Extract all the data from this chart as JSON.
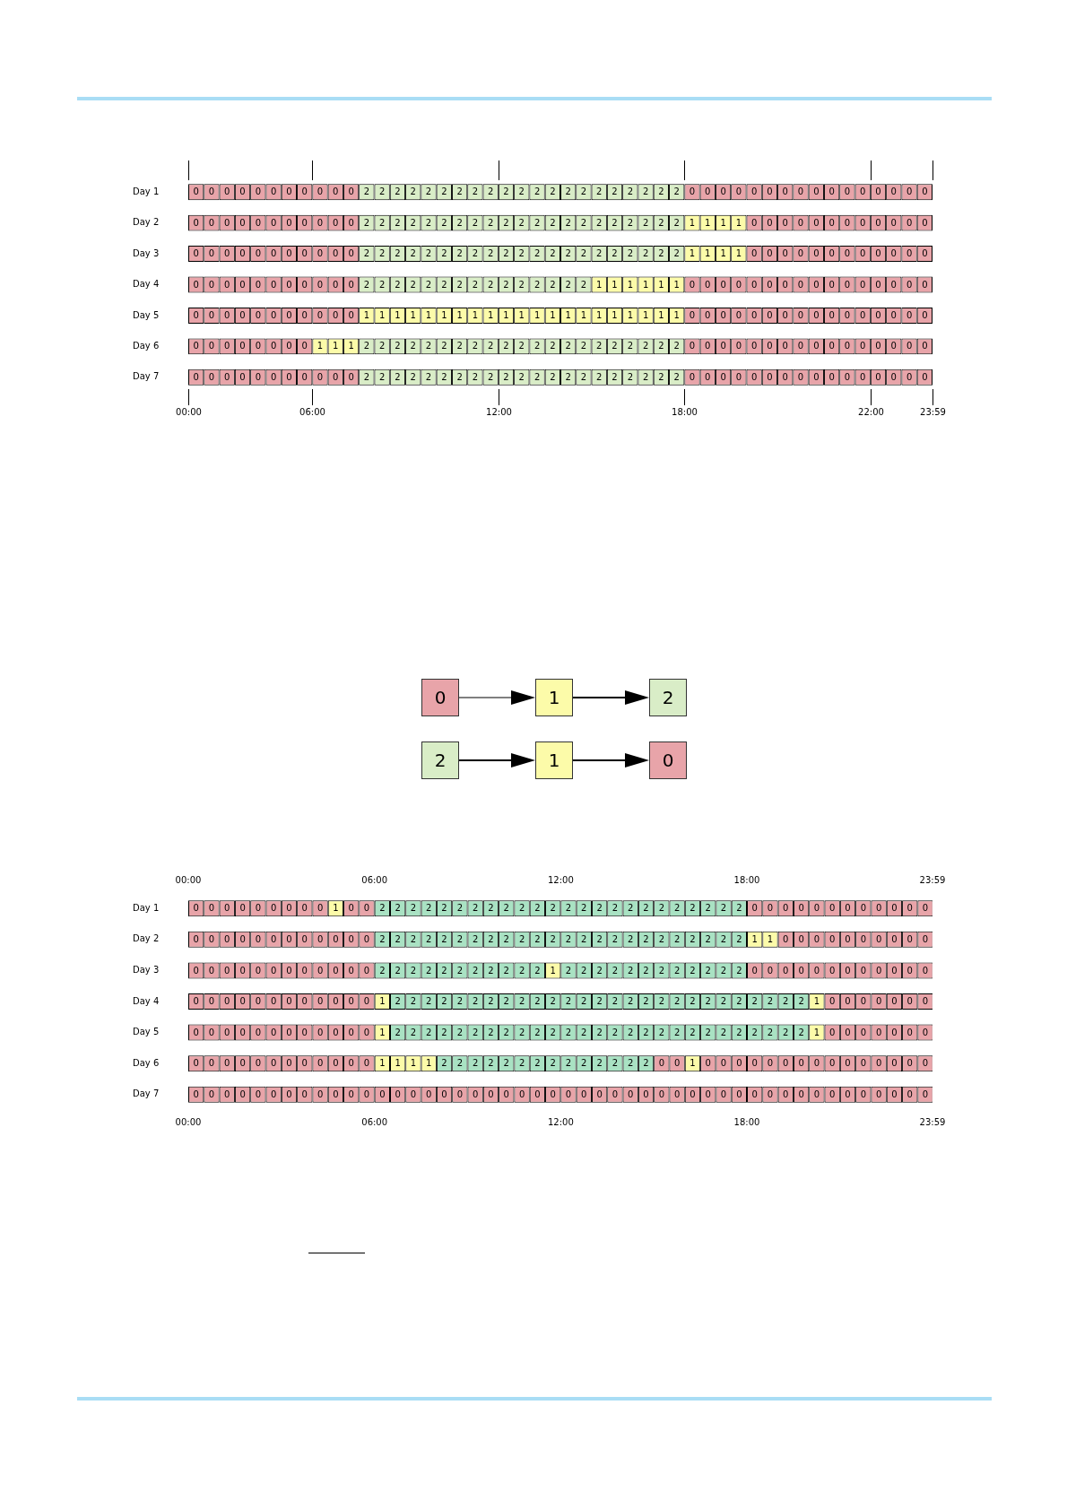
{
  "chart_data": [
    {
      "type": "heatmap",
      "y_categories": [
        "Day 1",
        "Day 2",
        "Day 3",
        "Day 4",
        "Day 5",
        "Day 6",
        "Day 7"
      ],
      "categories": [
        null,
        null,
        null,
        null,
        null,
        null,
        null,
        null,
        null,
        null,
        null,
        null,
        null,
        null,
        null,
        null,
        null,
        null,
        null,
        null,
        null,
        null,
        null,
        null,
        null,
        null,
        null,
        null,
        null,
        null,
        null,
        null,
        null,
        null,
        null,
        null,
        null,
        null,
        null,
        null,
        null,
        null,
        null,
        null,
        null,
        null,
        null,
        null
      ],
      "annotations": [
        "00:00",
        "06:00",
        "12:00",
        "18:00",
        "22:00",
        "23:59"
      ],
      "colors": [
        "#e8a4a9",
        "#fcfba9",
        "#d9edc7"
      ],
      "data_labels": true,
      "cells": [
        [
          0,
          0,
          0,
          0,
          0,
          0,
          0,
          0,
          0,
          0,
          0,
          2,
          2,
          2,
          2,
          2,
          2,
          2,
          2,
          2,
          2,
          2,
          2,
          2,
          2,
          2,
          2,
          2,
          2,
          2,
          2,
          2,
          0,
          0,
          0,
          0,
          0,
          0,
          0,
          0,
          0,
          0,
          0,
          0,
          0,
          0,
          0,
          0
        ],
        [
          0,
          0,
          0,
          0,
          0,
          0,
          0,
          0,
          0,
          0,
          0,
          2,
          2,
          2,
          2,
          2,
          2,
          2,
          2,
          2,
          2,
          2,
          2,
          2,
          2,
          2,
          2,
          2,
          2,
          2,
          2,
          2,
          1,
          1,
          1,
          1,
          0,
          0,
          0,
          0,
          0,
          0,
          0,
          0,
          0,
          0,
          0,
          0
        ],
        [
          0,
          0,
          0,
          0,
          0,
          0,
          0,
          0,
          0,
          0,
          0,
          2,
          2,
          2,
          2,
          2,
          2,
          2,
          2,
          2,
          2,
          2,
          2,
          2,
          2,
          2,
          2,
          2,
          2,
          2,
          2,
          2,
          1,
          1,
          1,
          1,
          0,
          0,
          0,
          0,
          0,
          0,
          0,
          0,
          0,
          0,
          0,
          0
        ],
        [
          0,
          0,
          0,
          0,
          0,
          0,
          0,
          0,
          0,
          0,
          0,
          2,
          2,
          2,
          2,
          2,
          2,
          2,
          2,
          2,
          2,
          2,
          2,
          2,
          2,
          2,
          1,
          1,
          1,
          1,
          1,
          1,
          0,
          0,
          0,
          0,
          0,
          0,
          0,
          0,
          0,
          0,
          0,
          0,
          0,
          0,
          0,
          0
        ],
        [
          0,
          0,
          0,
          0,
          0,
          0,
          0,
          0,
          0,
          0,
          0,
          1,
          1,
          1,
          1,
          1,
          1,
          1,
          1,
          1,
          1,
          1,
          1,
          1,
          1,
          1,
          1,
          1,
          1,
          1,
          1,
          1,
          0,
          0,
          0,
          0,
          0,
          0,
          0,
          0,
          0,
          0,
          0,
          0,
          0,
          0,
          0,
          0
        ],
        [
          0,
          0,
          0,
          0,
          0,
          0,
          0,
          0,
          1,
          1,
          1,
          2,
          2,
          2,
          2,
          2,
          2,
          2,
          2,
          2,
          2,
          2,
          2,
          2,
          2,
          2,
          2,
          2,
          2,
          2,
          2,
          2,
          0,
          0,
          0,
          0,
          0,
          0,
          0,
          0,
          0,
          0,
          0,
          0,
          0,
          0,
          0,
          0
        ],
        [
          0,
          0,
          0,
          0,
          0,
          0,
          0,
          0,
          0,
          0,
          0,
          2,
          2,
          2,
          2,
          2,
          2,
          2,
          2,
          2,
          2,
          2,
          2,
          2,
          2,
          2,
          2,
          2,
          2,
          2,
          2,
          2,
          0,
          0,
          0,
          0,
          0,
          0,
          0,
          0,
          0,
          0,
          0,
          0,
          0,
          0,
          0,
          0
        ]
      ]
    },
    {
      "type": "other",
      "annotations": [
        "0",
        "1",
        "2",
        "2",
        "1",
        "0"
      ],
      "colors": [
        "#e8a4a9",
        "#fcfba9",
        "#d9edc7",
        "#d9edc7",
        "#fcfba9",
        "#e8a4a9"
      ]
    },
    {
      "type": "heatmap",
      "y_categories": [
        "Day 1",
        "Day 2",
        "Day 3",
        "Day 4",
        "Day 5",
        "Day 6",
        "Day 7"
      ],
      "x": [
        0.25,
        0.75,
        1.25,
        1.75,
        2.25,
        2.75,
        3.25,
        3.75,
        4.25,
        4.75,
        5.25,
        5.75,
        6.25,
        6.75,
        7.25,
        7.75,
        8.25,
        8.75,
        9.25,
        9.75,
        10.25,
        10.75,
        11.25,
        11.75,
        12.25,
        12.75,
        13.25,
        13.75,
        14.25,
        14.75,
        15.25,
        15.75,
        16.25,
        16.75,
        17.25,
        17.75,
        18.25,
        18.75,
        19.25,
        19.75,
        20.25,
        20.75,
        21.25,
        21.75,
        22.25,
        22.75,
        23.25,
        23.75
      ],
      "xlim": [
        0,
        23.98
      ],
      "xticks": [
        {
          "value": 0,
          "label": "00:00"
        },
        {
          "value": 6,
          "label": "06:00"
        },
        {
          "value": 12,
          "label": "12:00"
        },
        {
          "value": 18,
          "label": "18:00"
        },
        {
          "value": 23.98,
          "label": "23:59"
        }
      ],
      "x2lim": [
        0,
        23.98
      ],
      "x2ticks": [
        {
          "value": 0,
          "label": "00:00"
        },
        {
          "value": 6,
          "label": "06:00"
        },
        {
          "value": 12,
          "label": "12:00"
        },
        {
          "value": 18,
          "label": "18:00"
        },
        {
          "value": 23.98,
          "label": "23:59"
        }
      ],
      "colors": [
        "#e8a4a9",
        "#fcfba9",
        "#a9e2c3"
      ],
      "data_labels": true,
      "cells": [
        [
          0,
          0,
          0,
          0,
          0,
          0,
          0,
          0,
          0,
          1,
          0,
          0,
          2,
          2,
          2,
          2,
          2,
          2,
          2,
          2,
          2,
          2,
          2,
          2,
          2,
          2,
          2,
          2,
          2,
          2,
          2,
          2,
          2,
          2,
          2,
          2,
          0,
          0,
          0,
          0,
          0,
          0,
          0,
          0,
          0,
          0,
          0,
          0
        ],
        [
          0,
          0,
          0,
          0,
          0,
          0,
          0,
          0,
          0,
          0,
          0,
          0,
          2,
          2,
          2,
          2,
          2,
          2,
          2,
          2,
          2,
          2,
          2,
          2,
          2,
          2,
          2,
          2,
          2,
          2,
          2,
          2,
          2,
          2,
          2,
          2,
          1,
          1,
          0,
          0,
          0,
          0,
          0,
          0,
          0,
          0,
          0,
          0
        ],
        [
          0,
          0,
          0,
          0,
          0,
          0,
          0,
          0,
          0,
          0,
          0,
          0,
          2,
          2,
          2,
          2,
          2,
          2,
          2,
          2,
          2,
          2,
          2,
          1,
          2,
          2,
          2,
          2,
          2,
          2,
          2,
          2,
          2,
          2,
          2,
          2,
          0,
          0,
          0,
          0,
          0,
          0,
          0,
          0,
          0,
          0,
          0,
          0
        ],
        [
          0,
          0,
          0,
          0,
          0,
          0,
          0,
          0,
          0,
          0,
          0,
          0,
          1,
          2,
          2,
          2,
          2,
          2,
          2,
          2,
          2,
          2,
          2,
          2,
          2,
          2,
          2,
          2,
          2,
          2,
          2,
          2,
          2,
          2,
          2,
          2,
          2,
          2,
          2,
          2,
          1,
          0,
          0,
          0,
          0,
          0,
          0,
          0
        ],
        [
          0,
          0,
          0,
          0,
          0,
          0,
          0,
          0,
          0,
          0,
          0,
          0,
          1,
          2,
          2,
          2,
          2,
          2,
          2,
          2,
          2,
          2,
          2,
          2,
          2,
          2,
          2,
          2,
          2,
          2,
          2,
          2,
          2,
          2,
          2,
          2,
          2,
          2,
          2,
          2,
          1,
          0,
          0,
          0,
          0,
          0,
          0,
          0
        ],
        [
          0,
          0,
          0,
          0,
          0,
          0,
          0,
          0,
          0,
          0,
          0,
          0,
          1,
          1,
          1,
          1,
          2,
          2,
          2,
          2,
          2,
          2,
          2,
          2,
          2,
          2,
          2,
          2,
          2,
          2,
          0,
          0,
          1,
          0,
          0,
          0,
          0,
          0,
          0,
          0,
          0,
          0,
          0,
          0,
          0,
          0,
          0,
          0
        ],
        [
          0,
          0,
          0,
          0,
          0,
          0,
          0,
          0,
          0,
          0,
          0,
          0,
          0,
          0,
          0,
          0,
          0,
          0,
          0,
          0,
          0,
          0,
          0,
          0,
          0,
          0,
          0,
          0,
          0,
          0,
          0,
          0,
          0,
          0,
          0,
          0,
          0,
          0,
          0,
          0,
          0,
          0,
          0,
          0,
          0,
          0,
          0,
          0
        ]
      ]
    }
  ]
}
